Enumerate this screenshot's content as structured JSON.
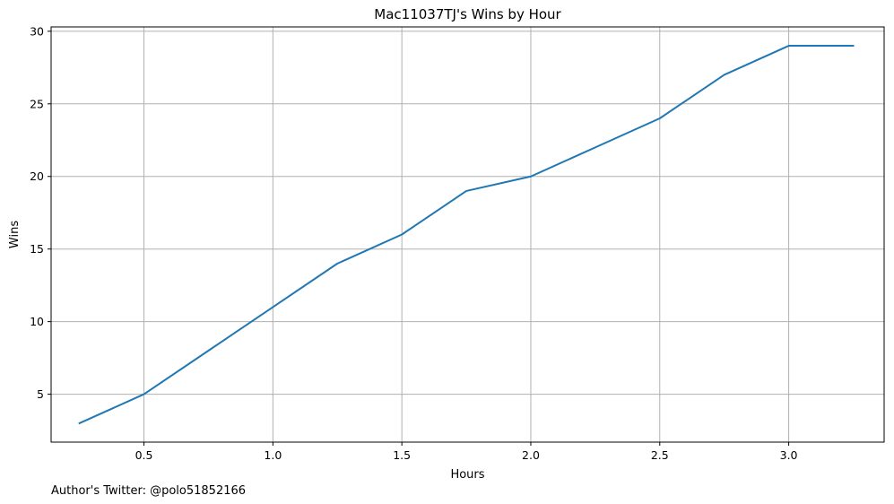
{
  "chart_data": {
    "type": "line",
    "title": "Mac11037TJ's Wins by Hour",
    "xlabel": "Hours",
    "ylabel": "Wins",
    "xlim": [
      0.14,
      3.37
    ],
    "ylim": [
      1.7,
      30.3
    ],
    "xticks": [
      0.5,
      1.0,
      1.5,
      2.0,
      2.5,
      3.0
    ],
    "xtick_labels": [
      "0.5",
      "1.0",
      "1.5",
      "2.0",
      "2.5",
      "3.0"
    ],
    "yticks": [
      5,
      10,
      15,
      20,
      25,
      30
    ],
    "ytick_labels": [
      "5",
      "10",
      "15",
      "20",
      "25",
      "30"
    ],
    "grid": true,
    "line_color": "#1f77b4",
    "series": [
      {
        "x": [
          0.25,
          0.5,
          0.75,
          1.0,
          1.25,
          1.5,
          1.75,
          2.0,
          2.25,
          2.5,
          2.75,
          3.0,
          3.25
        ],
        "values": [
          3,
          5,
          8,
          11,
          14,
          16,
          19,
          20,
          22,
          24,
          27,
          29,
          29
        ]
      }
    ]
  },
  "footer": {
    "credit": "Author's Twitter: @polo51852166"
  }
}
